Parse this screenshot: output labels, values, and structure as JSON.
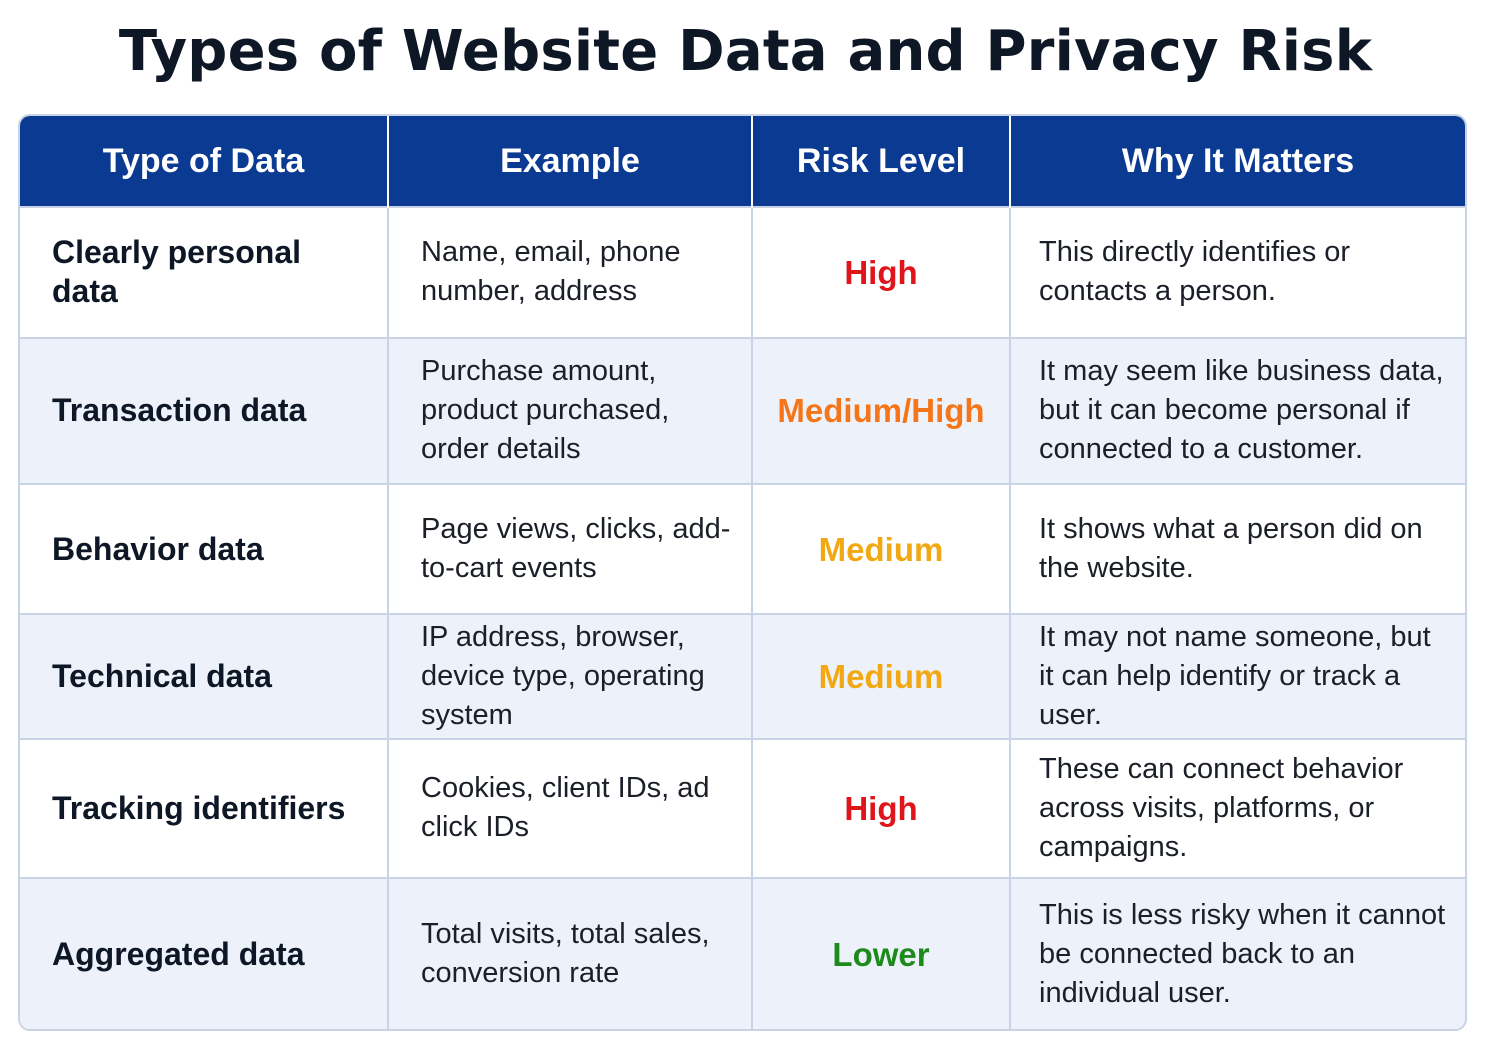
{
  "title": "Types of Website Data and Privacy Risk",
  "columns": [
    "Type of Data",
    "Example",
    "Risk Level",
    "Why It Matters"
  ],
  "risk_colors": {
    "High": "#e0141b",
    "Medium/High": "#f5761a",
    "Medium": "#f2a812",
    "Lower": "#1f8a1c"
  },
  "header_color": "#0b3a93",
  "rows": [
    {
      "type": "Clearly personal data",
      "example": "Name, email, phone number, address",
      "risk": "High",
      "why": "This directly identifies or contacts a person."
    },
    {
      "type": "Transaction data",
      "example": "Purchase amount, product purchased, order details",
      "risk": "Medium/High",
      "why": "It may seem like business data, but it can become personal if connected to a customer."
    },
    {
      "type": "Behavior data",
      "example": "Page views, clicks, add-to-cart events",
      "risk": "Medium",
      "why": "It shows what a person did on the website."
    },
    {
      "type": "Technical data",
      "example": "IP address, browser, device type, operating system",
      "risk": "Medium",
      "why": "It may not name someone, but it can help identify or track a user."
    },
    {
      "type": "Tracking identifiers",
      "example": "Cookies, client IDs, ad click IDs",
      "risk": "High",
      "why": "These can connect behavior across visits, platforms, or campaigns."
    },
    {
      "type": "Aggregated data",
      "example": "Total visits, total sales, conversion rate",
      "risk": "Lower",
      "why": "This is less risky when it cannot be connected back to an individual user."
    }
  ]
}
